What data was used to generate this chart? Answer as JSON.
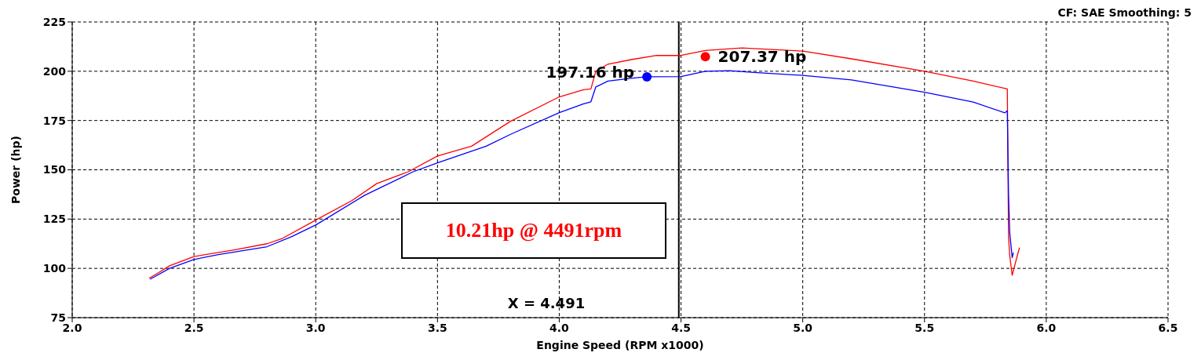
{
  "chart_data": {
    "type": "line",
    "xlabel": "Engine Speed (RPM x1000)",
    "ylabel": "Power (hp)",
    "xlim": [
      2.0,
      6.5
    ],
    "xticks": [
      {
        "value": 2,
        "label": "2.0"
      },
      {
        "value": 2.5,
        "label": "2.5"
      },
      {
        "value": 3,
        "label": "3.0"
      },
      {
        "value": 3.5,
        "label": "3.5"
      },
      {
        "value": 4,
        "label": "4.0"
      },
      {
        "value": 4.5,
        "label": "4.5"
      },
      {
        "value": 5,
        "label": "5.0"
      },
      {
        "value": 5.5,
        "label": "5.5"
      },
      {
        "value": 6,
        "label": "6.0"
      },
      {
        "value": 6.5,
        "label": "6.5"
      }
    ],
    "ylim": [
      75,
      225
    ],
    "yticks": [
      75,
      100,
      125,
      150,
      175,
      200,
      225
    ],
    "grid": true,
    "marker": "none",
    "series": [
      {
        "color": "#ff0000",
        "x": [
          2.316,
          2.35,
          2.4,
          2.5,
          2.67,
          2.8,
          2.86,
          3.0,
          3.15,
          3.25,
          3.38,
          3.5,
          3.64,
          3.8,
          4.0,
          4.1,
          4.13,
          4.15,
          4.2,
          4.3,
          4.4,
          4.5,
          4.6,
          4.75,
          5.0,
          5.2,
          5.5,
          5.7,
          5.84,
          5.845,
          5.85,
          5.86,
          5.88,
          5.89
        ],
        "values": [
          95,
          97.5,
          101.3,
          106,
          109.5,
          112.5,
          115,
          124.5,
          134.5,
          143,
          149,
          157,
          162,
          174.6,
          187,
          190.6,
          191,
          200,
          203.6,
          206,
          208,
          208,
          210.5,
          211.8,
          210.2,
          206.3,
          200,
          195,
          191,
          116,
          106.4,
          96.5,
          106,
          110.5
        ]
      },
      {
        "color": "#0000ff",
        "x": [
          2.32,
          2.4,
          2.5,
          2.6,
          2.8,
          2.9,
          3.0,
          3.2,
          3.4,
          3.5,
          3.7,
          3.8,
          4.0,
          4.1,
          4.13,
          4.15,
          4.2,
          4.3,
          4.36,
          4.5,
          4.6,
          4.7,
          4.8,
          5.0,
          5.2,
          5.5,
          5.7,
          5.83,
          5.84,
          5.845,
          5.85,
          5.86,
          5.865
        ],
        "values": [
          94.5,
          100,
          104.5,
          107,
          111,
          116,
          122,
          137,
          149,
          153.5,
          162,
          168,
          179,
          183.5,
          184.5,
          192,
          195,
          196.5,
          197.2,
          197.3,
          200,
          200.3,
          199.4,
          197.9,
          195.6,
          189.3,
          184.4,
          178.9,
          180,
          137.8,
          118,
          105.5,
          108
        ]
      }
    ],
    "ref_lines": [
      {
        "axis": "x",
        "value": 4.491,
        "label": "X = 4.491",
        "color": "#000000"
      }
    ],
    "annotations": [
      {
        "text": "207.37 hp",
        "x": 4.6,
        "y": 207.37
      },
      {
        "text": "197.16 hp",
        "x": 4.36,
        "y": 197.16
      },
      "10.21hp @ 4491rpm",
      "CF: SAE  Smoothing: 5"
    ]
  }
}
